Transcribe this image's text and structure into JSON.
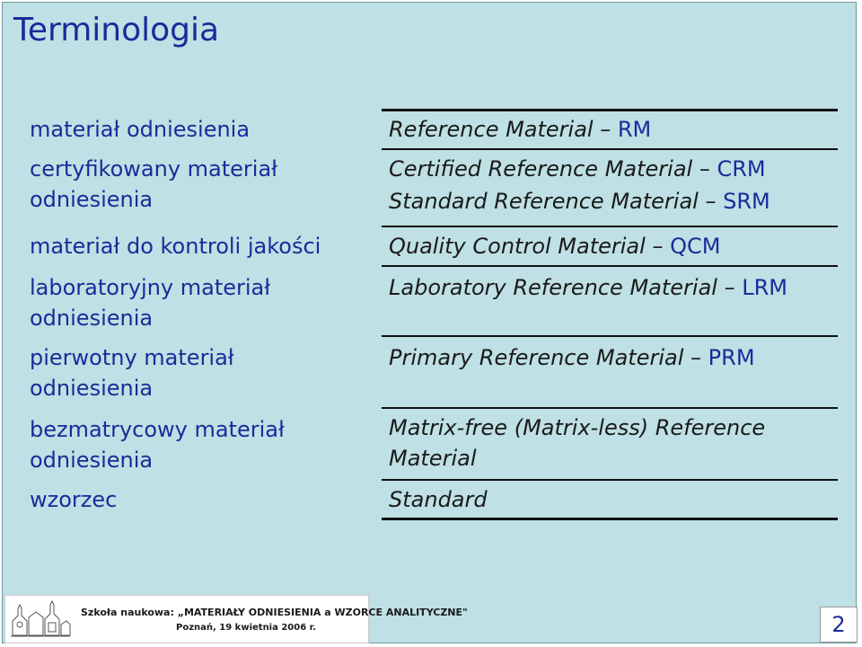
{
  "title": "Terminologia",
  "rows": [
    {
      "pl": [
        "materiał odniesienia"
      ],
      "en_term": "Reference Material",
      "en_abbr": "RM"
    },
    {
      "pl": [
        "certyfikowany materiał",
        "odniesienia"
      ],
      "en_term": "Certified Reference Material",
      "en_abbr": "CRM",
      "en_term2": "Standard Reference Material",
      "en_abbr2": "SRM"
    },
    {
      "pl": [
        "materiał do kontroli jakości"
      ],
      "en_term": "Quality Control Material",
      "en_abbr": "QCM"
    },
    {
      "pl": [
        "laboratoryjny materiał",
        "odniesienia"
      ],
      "en_term": "Laboratory Reference Material",
      "en_abbr": "LRM"
    },
    {
      "pl": [
        "pierwotny materiał",
        "odniesienia"
      ],
      "en_term": "Primary Reference Material",
      "en_abbr": "PRM"
    },
    {
      "pl": [
        "bezmatrycowy materiał",
        "odniesienia"
      ],
      "en_term_lines": [
        "Matrix-free (Matrix-less) Reference",
        "Material"
      ]
    },
    {
      "pl": [
        "wzorzec"
      ],
      "en_term": "Standard"
    }
  ],
  "dash": "–",
  "footer": {
    "line1": "Szkoła naukowa: „MATERIAŁY ODNIESIENIA a WZORCE ANALITYCZNE\"",
    "line2": "Poznań, 19 kwietnia 2006 r."
  },
  "page_number": "2",
  "icons": {
    "logo": "university-logo-icon"
  }
}
